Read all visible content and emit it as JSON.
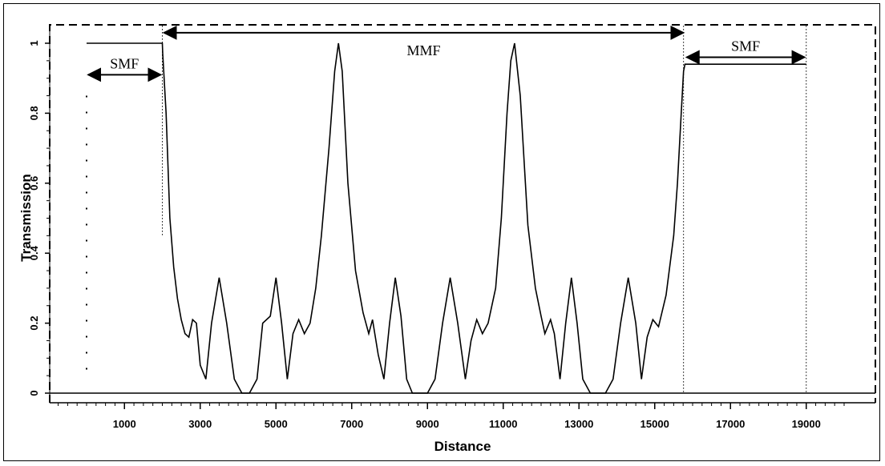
{
  "chart_data": {
    "type": "line",
    "xlabel": "Distance",
    "ylabel": "Transmission",
    "xlim": [
      -1000,
      20000
    ],
    "ylim": [
      -0.05,
      1.05
    ],
    "x_ticks": [
      1000,
      3000,
      5000,
      7000,
      9000,
      11000,
      13000,
      15000,
      17000,
      19000
    ],
    "y_ticks": [
      0,
      0.2,
      0.4,
      0.6,
      0.8,
      1
    ],
    "y_tick_labels": [
      "0",
      "0.2",
      "0.4",
      "0.6",
      "0.8",
      "1"
    ],
    "grid": false,
    "series": [
      {
        "x": [
          0,
          2000,
          2010,
          2100,
          2200,
          2300,
          2400,
          2500,
          2600,
          2700,
          2800,
          2900,
          3000,
          3150,
          3300,
          3500,
          3700,
          3900,
          4100,
          4300,
          4500,
          4650,
          4850,
          5000,
          5150,
          5300,
          5450,
          5600,
          5750,
          5900,
          6050,
          6200,
          6400,
          6550,
          6650,
          6750,
          6900,
          7100,
          7300,
          7450,
          7550,
          7700,
          7850,
          8000,
          8150,
          8300,
          8450,
          8600,
          8800,
          9000,
          9200,
          9400,
          9600,
          9800,
          10000,
          10150,
          10300,
          10450,
          10600,
          10800,
          10950,
          11100,
          11200,
          11300,
          11450,
          11650,
          11850,
          12000,
          12100,
          12250,
          12350,
          12500,
          12650,
          12800,
          12950,
          13100,
          13300,
          13500,
          13700,
          13900,
          14100,
          14300,
          14500,
          14650,
          14800,
          14950,
          15100,
          15300,
          15500,
          15600,
          15700,
          15760,
          15800,
          19000
        ],
        "y": [
          1.0,
          1.0,
          0.97,
          0.8,
          0.5,
          0.36,
          0.27,
          0.21,
          0.17,
          0.16,
          0.21,
          0.2,
          0.08,
          0.04,
          0.2,
          0.33,
          0.2,
          0.04,
          0.0,
          0.0,
          0.04,
          0.2,
          0.22,
          0.33,
          0.2,
          0.04,
          0.17,
          0.21,
          0.17,
          0.2,
          0.3,
          0.45,
          0.7,
          0.92,
          1.0,
          0.92,
          0.6,
          0.35,
          0.23,
          0.17,
          0.21,
          0.11,
          0.04,
          0.2,
          0.33,
          0.22,
          0.04,
          0.0,
          0.0,
          0.0,
          0.04,
          0.2,
          0.33,
          0.2,
          0.04,
          0.15,
          0.21,
          0.17,
          0.2,
          0.3,
          0.5,
          0.8,
          0.95,
          1.0,
          0.85,
          0.48,
          0.3,
          0.22,
          0.17,
          0.21,
          0.17,
          0.04,
          0.2,
          0.33,
          0.2,
          0.04,
          0.0,
          0.0,
          0.0,
          0.04,
          0.2,
          0.33,
          0.2,
          0.04,
          0.16,
          0.21,
          0.19,
          0.28,
          0.45,
          0.6,
          0.8,
          0.92,
          0.94,
          0.94
        ]
      }
    ],
    "annotations": [
      {
        "label": "SMF",
        "from": 0,
        "to": 2000,
        "y": 0.91
      },
      {
        "label": "MMF",
        "from": 2000,
        "to": 15800,
        "y": 1.03
      },
      {
        "label": "SMF",
        "from": 15800,
        "to": 19000,
        "y": 0.96
      }
    ],
    "vertical_markers": [
      {
        "x": 0,
        "style": "dotted",
        "y_from": 0.05,
        "y_to": 0.85
      },
      {
        "x": 2000,
        "style": "dotted",
        "y_from": 0.45,
        "y_to": 1.05
      },
      {
        "x": 15760,
        "style": "dotted",
        "y_from": 0.0,
        "y_to": 1.05
      },
      {
        "x": 19000,
        "style": "dotted",
        "y_from": 0.0,
        "y_to": 1.05
      }
    ]
  }
}
